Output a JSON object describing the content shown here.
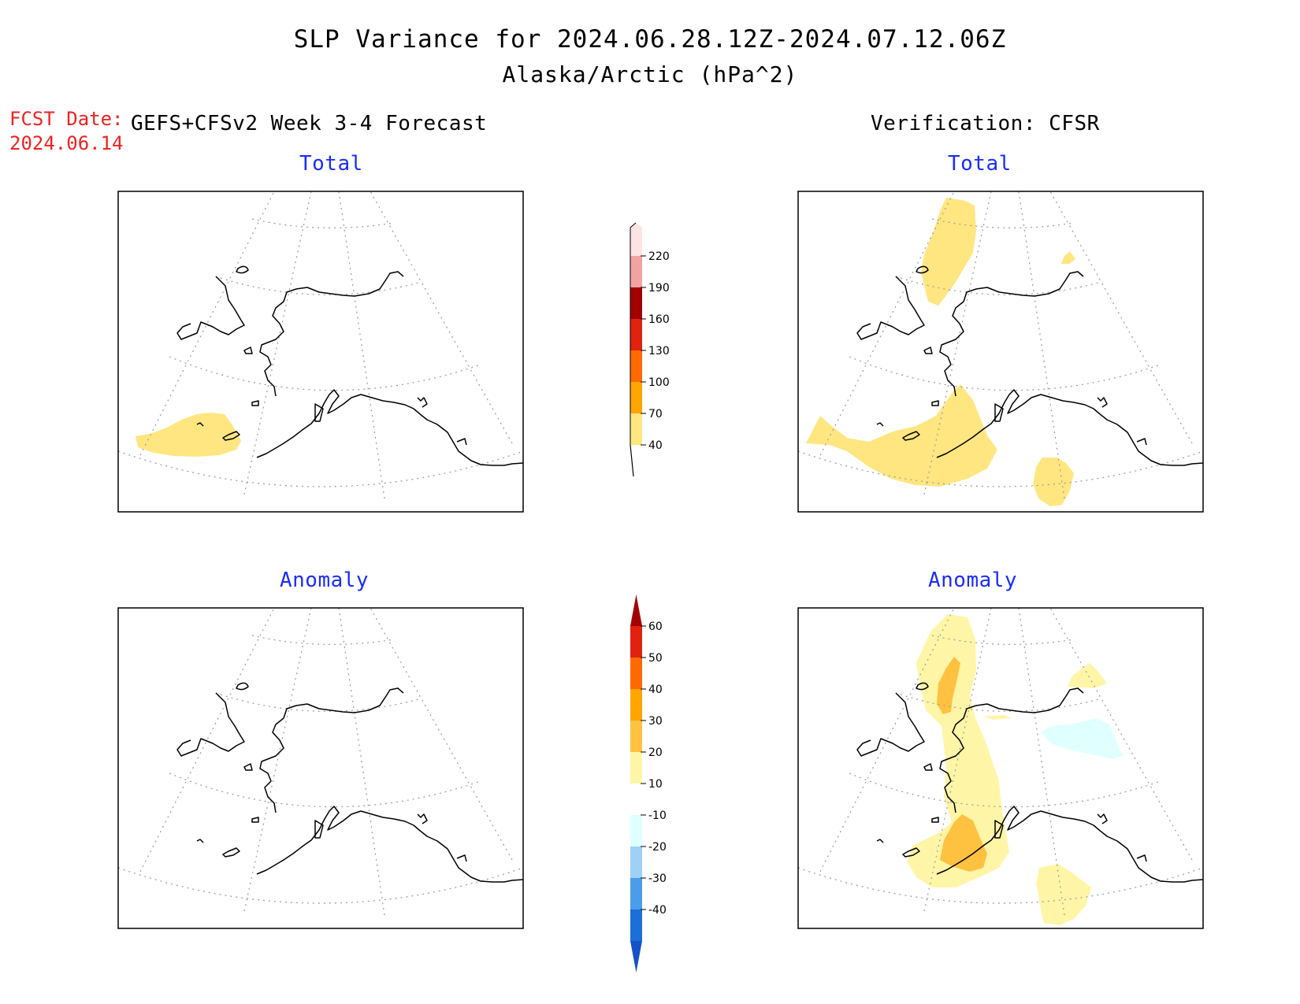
{
  "header": {
    "title": "SLP Variance for 2024.06.28.12Z-2024.07.12.06Z",
    "subtitle": "Alaska/Arctic (hPa^2)"
  },
  "forecast": {
    "date_label": "FCST Date:",
    "date_value": "2024.06.14",
    "header": "GEFS+CFSv2 Week 3-4 Forecast"
  },
  "verification": {
    "header": "Verification: CFSR"
  },
  "panels": {
    "forecast_total": {
      "title": "Total"
    },
    "verification_total": {
      "title": "Total"
    },
    "forecast_anomaly": {
      "title": "Anomaly"
    },
    "verification_anomaly": {
      "title": "Anomaly"
    }
  },
  "colorbars": {
    "total": {
      "labels": [
        "40",
        "70",
        "100",
        "130",
        "160",
        "190",
        "220"
      ],
      "colors": [
        "#ffe680",
        "#ffa500",
        "#ff6a00",
        "#e0220f",
        "#a50000",
        "#f3a2a2",
        "#fde3e3"
      ]
    },
    "anomaly": {
      "labels": [
        "60",
        "50",
        "40",
        "30",
        "20",
        "10",
        "-10",
        "-20",
        "-30",
        "-40"
      ],
      "colors": [
        "#a50000",
        "#e0220f",
        "#ff6a00",
        "#ffa500",
        "#ffc140",
        "#fff5a6",
        "#ffffff",
        "#e0ffff",
        "#9fd0f5",
        "#4a9ee8",
        "#1a6fd8",
        "#1452c8"
      ]
    }
  },
  "fill_colors": {
    "total_40_70": "#ffe680",
    "anom_10_20": "#fff5a6",
    "anom_30_40": "#ffc140",
    "anom_neg10_neg20": "#e0ffff"
  }
}
